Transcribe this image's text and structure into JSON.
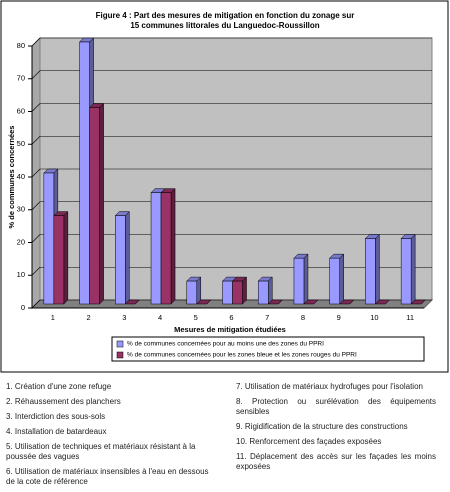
{
  "chart_data": {
    "type": "bar3d",
    "title": [
      "Figure 4 : Part des mesures de mitigation en fonction du zonage sur",
      "15 communes littorales du Languedoc-Roussillon"
    ],
    "y_label": "% de communes concernées",
    "x_label": "Mesures de mitigation étudiées",
    "categories": [
      "1",
      "2",
      "3",
      "4",
      "5",
      "6",
      "7",
      "8",
      "9",
      "10",
      "11"
    ],
    "series": [
      {
        "name": "% de communes concernées pour au moins une des zones du PPRI",
        "color": "#9999ff",
        "values": [
          40,
          80,
          27,
          34,
          7,
          7,
          7,
          14,
          14,
          20,
          20
        ]
      },
      {
        "name": "% de communes concernées pour les zones bleue et les zones rouges du PPRI",
        "color": "#993366",
        "values": [
          27,
          60,
          0,
          34,
          0,
          7,
          0,
          0,
          0,
          0,
          0
        ]
      }
    ],
    "ylim": [
      0,
      80
    ],
    "yticks": [
      0,
      10,
      20,
      30,
      40,
      50,
      60,
      70,
      80
    ],
    "grid": true
  },
  "measures": [
    "1. Création d'une zone refuge",
    "2. Réhaussement des planchers",
    "3. Interdiction des sous-sols",
    "4. Installation de batardeaux",
    "5. Utilisation de techniques et matériaux résistant à la poussée des vagues",
    "6. Utilisation de matériaux  insensibles à l'eau en dessous de la cote de référence",
    "7. Utilisation de matériaux hydrofuges pour l'isolation",
    "8. Protection ou surélévation des équipements sensibles",
    "9. Rigidification de la structure des constructions",
    "10. Renforcement des façades exposées",
    "11. Déplacement des accès sur les façades les moins exposées"
  ]
}
